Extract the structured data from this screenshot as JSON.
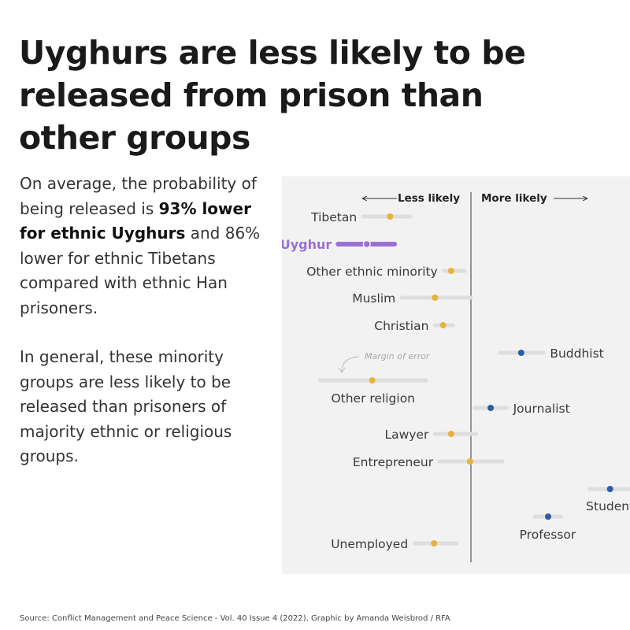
{
  "title_lines": [
    "Uyghurs are less likely to be",
    "released from prison than",
    "other groups"
  ],
  "description": {
    "p1_a": "On average, the probability of being released is ",
    "p1_bold": "93% lower for ethnic Uyghurs",
    "p1_b": " and 86% lower for ethnic Tibetans compared with ethnic Han prisoners.",
    "p2": "In general, these minority groups are less likely to be released than prisoners of majority ethnic or religious groups."
  },
  "source": "Source: Conflict Management and Peace Science - Vol. 40 Issue 4 (2022), Graphic by Amanda Weisbrod / RFA",
  "colors": {
    "negative": "#eab13a",
    "positive": "#2e5ca8",
    "highlight": "#9b6fd6",
    "range": "#dedede",
    "axis": "#555555",
    "panel": "#f2f2f2"
  },
  "chart_data": {
    "type": "scatter",
    "subtype": "dot-and-whisker",
    "axis_labels": {
      "left": "Less likely",
      "right": "More likely"
    },
    "annotation": "Margin of error",
    "highlight_category": "Uyghur",
    "points": [
      {
        "label": "Tibetan",
        "estimate": -0.9,
        "low": -1.2,
        "high": -0.68
      },
      {
        "label": "Uyghur",
        "estimate": -1.16,
        "low": -1.48,
        "high": -0.85
      },
      {
        "label": "Other ethnic minority",
        "estimate": -0.22,
        "low": -0.3,
        "high": -0.07
      },
      {
        "label": "Muslim",
        "estimate": -0.4,
        "low": -0.77,
        "high": 0.0
      },
      {
        "label": "Christian",
        "estimate": -0.31,
        "low": -0.4,
        "high": -0.2
      },
      {
        "label": "Buddhist",
        "estimate": 0.56,
        "low": 0.32,
        "high": 0.81
      },
      {
        "label": "Other religion",
        "estimate": -1.1,
        "low": -1.68,
        "high": -0.5
      },
      {
        "label": "Journalist",
        "estimate": 0.22,
        "low": 0.04,
        "high": 0.4
      },
      {
        "label": "Lawyer",
        "estimate": -0.22,
        "low": -0.4,
        "high": 0.06
      },
      {
        "label": "Entrepreneur",
        "estimate": -0.01,
        "low": -0.35,
        "high": 0.35
      },
      {
        "label": "Student",
        "estimate": 1.55,
        "low": 1.32,
        "high": 1.78
      },
      {
        "label": "Professor",
        "estimate": 0.86,
        "low": 0.71,
        "high": 1.0
      },
      {
        "label": "Unemployed",
        "estimate": -0.41,
        "low": -0.63,
        "high": -0.16
      }
    ]
  }
}
